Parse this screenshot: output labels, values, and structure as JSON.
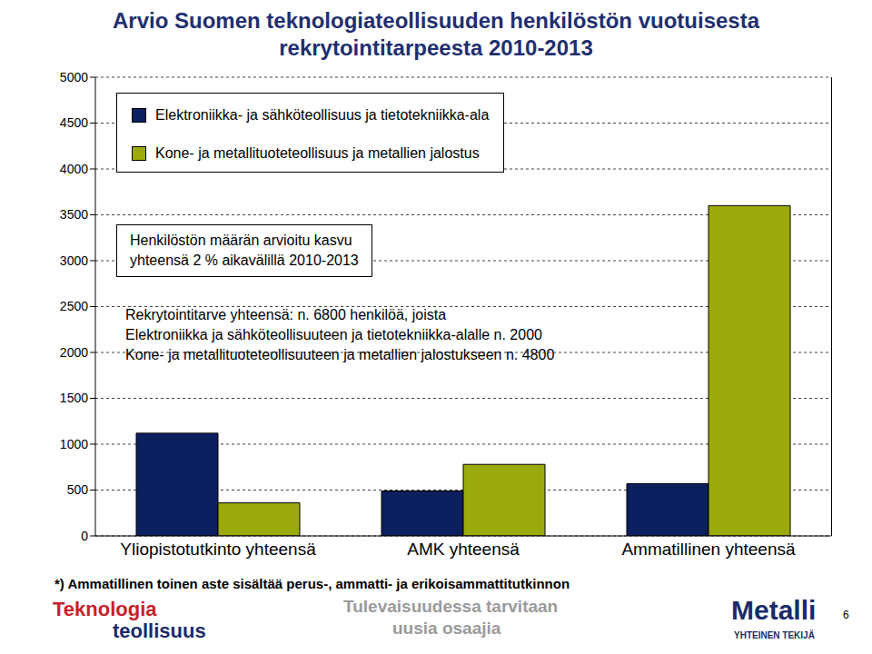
{
  "chart_data": {
    "type": "bar",
    "title": "Arvio Suomen teknologiateollisuuden henkilöstön vuotuisesta rekrytointitarpeesta 2010-2013",
    "categories": [
      "Yliopistotutkinto yhteensä",
      "AMK yhteensä",
      "Ammatillinen yhteensä"
    ],
    "series": [
      {
        "name": "Elektroniikka- ja sähköteollisuus ja tietotekniikka-ala",
        "color": "#0c1f5e",
        "values": [
          1120,
          490,
          570
        ]
      },
      {
        "name": "Kone- ja metallituoteteollisuus ja metallien jalostus",
        "color": "#9aaa0c",
        "values": [
          360,
          780,
          3600
        ]
      }
    ],
    "ylim": [
      0,
      5000
    ],
    "yticks": [
      0,
      500,
      1000,
      1500,
      2000,
      2500,
      3000,
      3500,
      4000,
      4500,
      5000
    ],
    "grid": true,
    "legend": "upper left",
    "annotations": [
      "Henkilöstön määrän arvioitu kasvu",
      "yhteensä 2 % aikavälillä 2010-2013",
      "Rekrytointitarve yhteensä: n. 6800 henkilöä, joista",
      "Elektroniikka ja sähköteollisuuteen ja tietotekniikka-alalle n. 2000",
      "Kone- ja metallituoteteollisuuteen ja metallien jalostukseen n. 4800",
      "*) Ammatillinen toinen aste sisältää perus-, ammatti- ja erikoisammattitutkinnon",
      "Teknologia",
      "teollisuus",
      "Tulevaisuudessa tarvitaan",
      "uusia osaajia",
      "Metalli",
      "YHTEINEN TEKIJÄ",
      "6"
    ]
  }
}
